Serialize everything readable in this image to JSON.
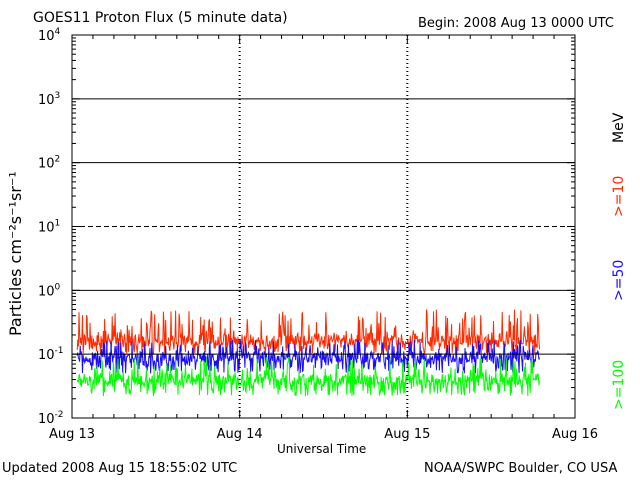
{
  "header": {
    "title": "GOES11 Proton Flux (5 minute data)",
    "begin": "Begin: 2008 Aug 13 0000 UTC"
  },
  "footer": {
    "updated": "Updated 2008 Aug 15 18:55:02 UTC",
    "source": "NOAA/SWPC Boulder, CO USA"
  },
  "energy_labels": {
    "unit": "MeV",
    "ge10": ">=10",
    "ge50": ">=50",
    "ge100": ">=100"
  },
  "chart_data": {
    "type": "line",
    "title": "GOES11 Proton Flux (5 minute data)",
    "xlabel": "Universal Time",
    "ylabel": "Particles cm⁻²s⁻¹sr⁻¹",
    "yscale": "log",
    "ylim": [
      0.01,
      10000
    ],
    "y_ticks": [
      {
        "value": 0.01,
        "base": "10",
        "exp": "-2"
      },
      {
        "value": 0.1,
        "base": "10",
        "exp": "-1"
      },
      {
        "value": 1,
        "base": "10",
        "exp": "0"
      },
      {
        "value": 10,
        "base": "10",
        "exp": "1"
      },
      {
        "value": 100,
        "base": "10",
        "exp": "2"
      },
      {
        "value": 1000,
        "base": "10",
        "exp": "3"
      },
      {
        "value": 10000,
        "base": "10",
        "exp": "4"
      }
    ],
    "xlim": [
      "2008-08-13 00:00",
      "2008-08-16 00:00"
    ],
    "x_ticks": [
      {
        "value": "2008-08-13",
        "label": "Aug 13"
      },
      {
        "value": "2008-08-14",
        "label": "Aug 14"
      },
      {
        "value": "2008-08-15",
        "label": "Aug 15"
      },
      {
        "value": "2008-08-16",
        "label": "Aug 16"
      }
    ],
    "thresholds": [
      {
        "value": 10,
        "style": "dashed"
      },
      {
        "value": 1,
        "style": "solid"
      },
      {
        "value": 100,
        "style": "solid"
      },
      {
        "value": 1000,
        "style": "solid"
      },
      {
        "value": 0.1,
        "style": "solid"
      }
    ],
    "series": [
      {
        "name": ">=10 MeV",
        "color": "#ff2a00",
        "baseline": 0.17,
        "min": 0.1,
        "max": 0.5
      },
      {
        "name": ">=50 MeV",
        "color": "#1a0dff",
        "baseline": 0.09,
        "min": 0.05,
        "max": 0.17
      },
      {
        "name": ">=100 MeV",
        "color": "#00ff00",
        "baseline": 0.04,
        "min": 0.022,
        "max": 0.09
      }
    ],
    "data_end": "2008-08-15 18:55"
  }
}
